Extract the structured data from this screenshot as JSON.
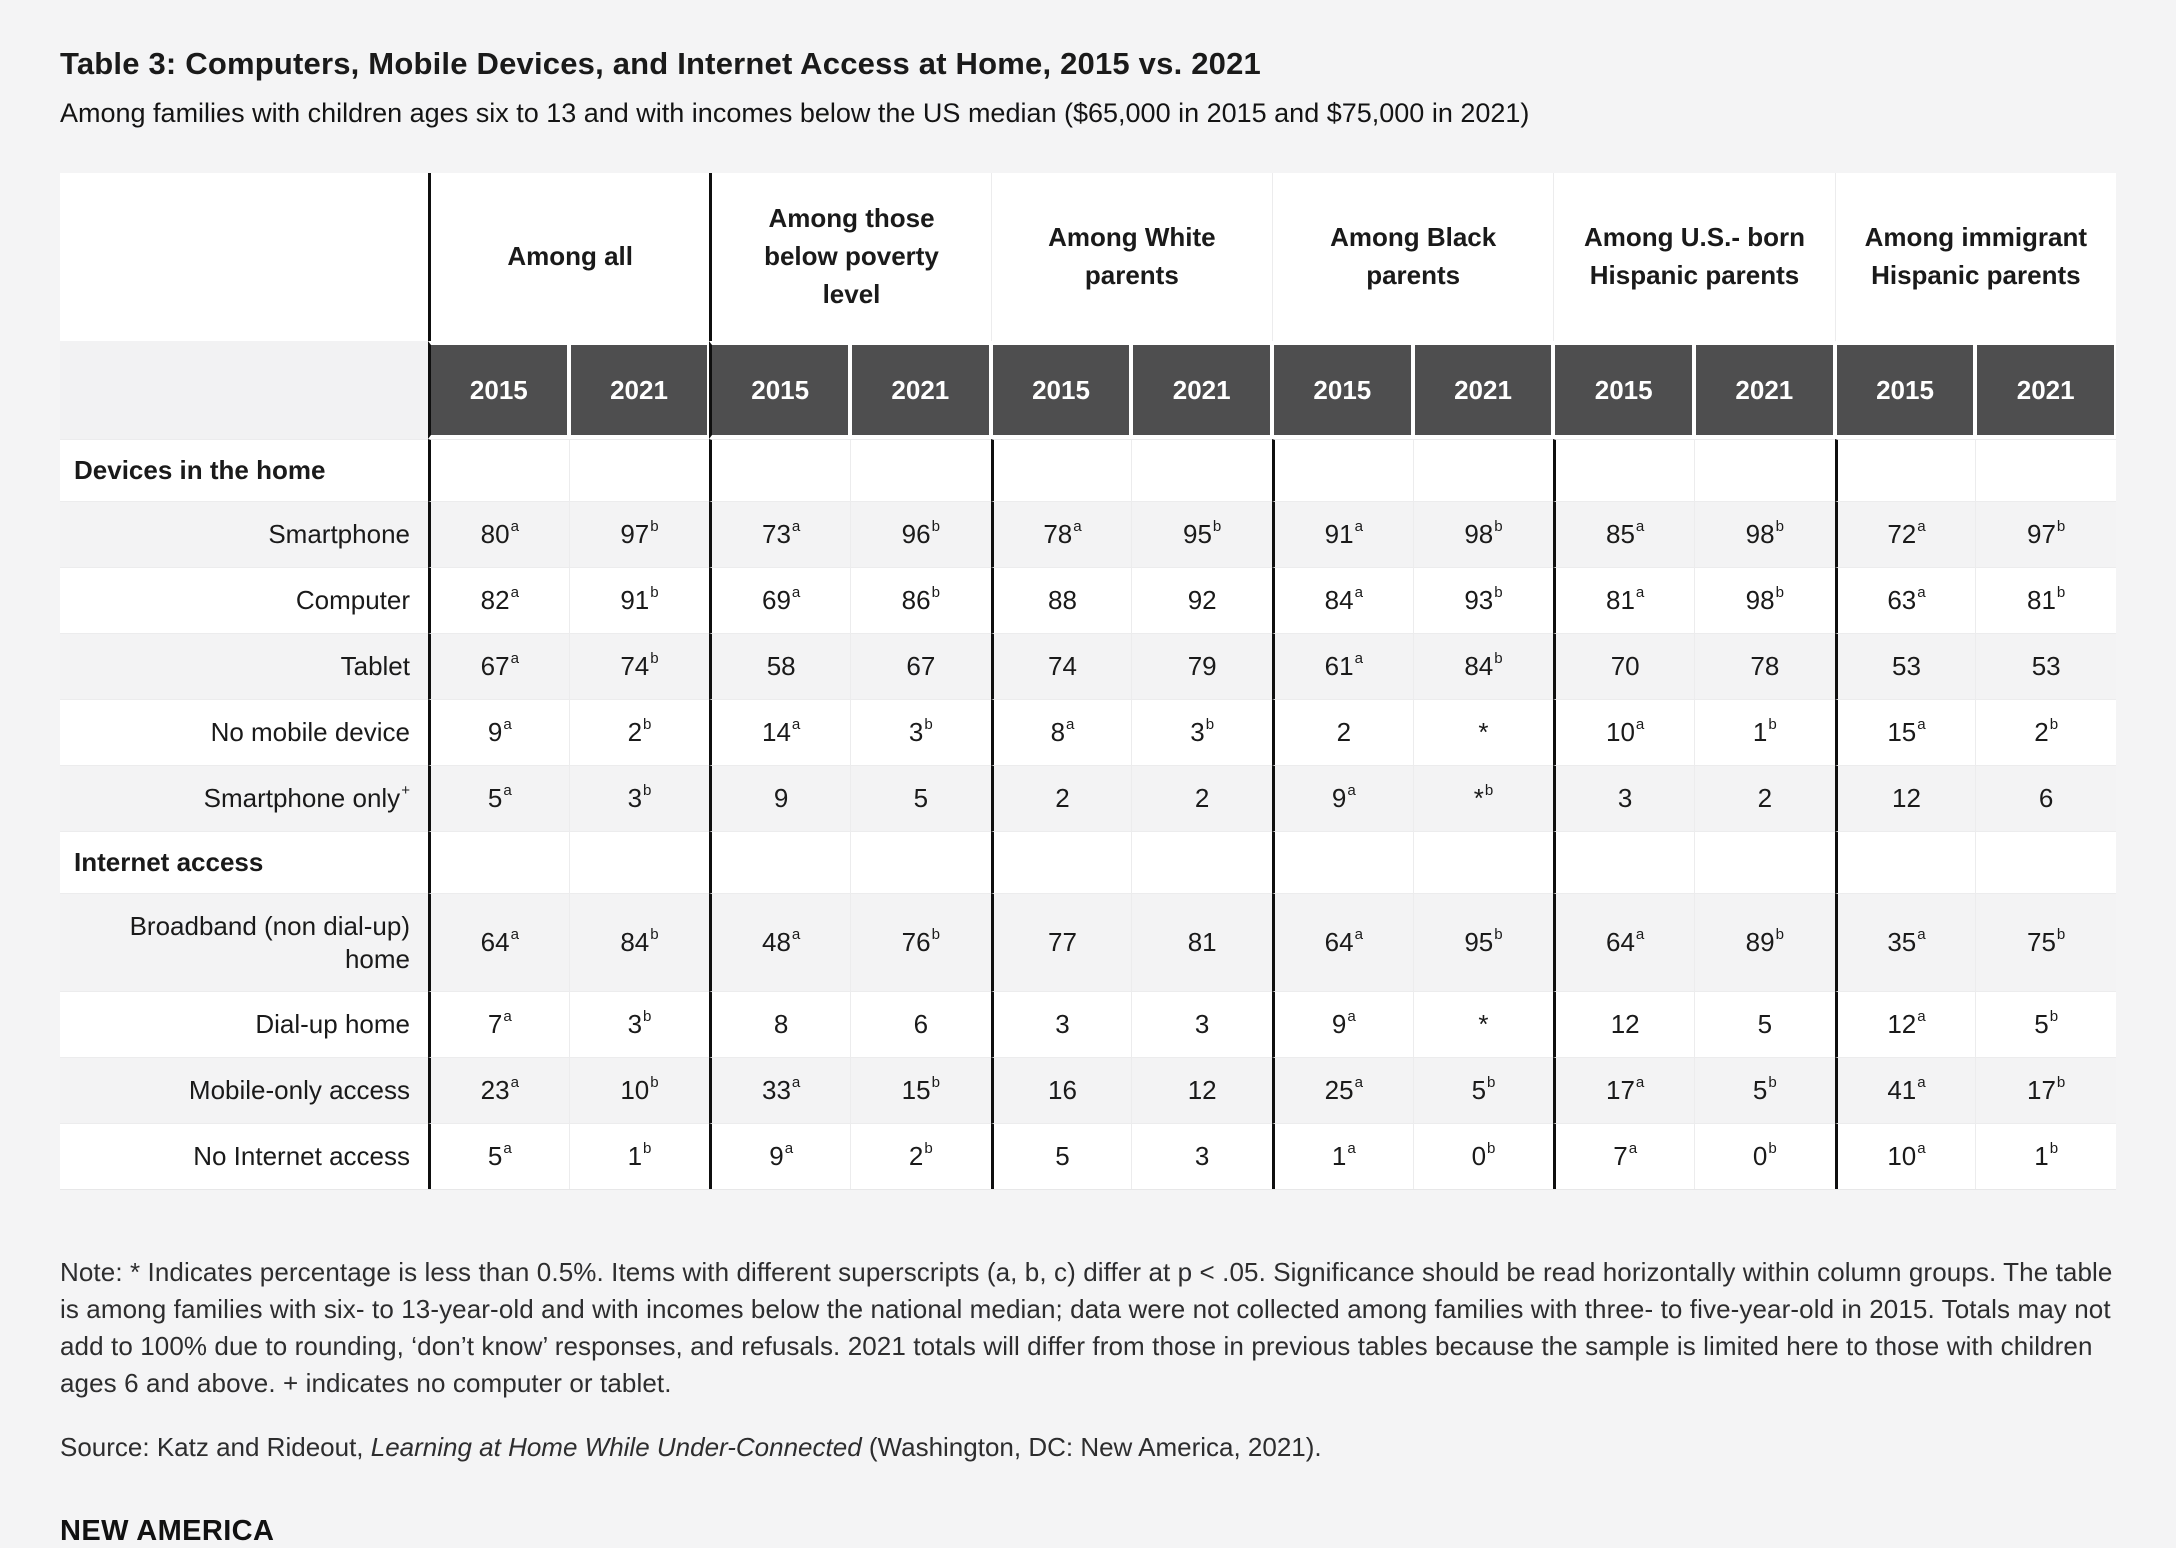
{
  "title": "Table 3: Computers, Mobile Devices, and Internet Access at Home, 2015 vs. 2021",
  "subtitle": "Among families with children ages six to 13 and with incomes below the US median ($65,000 in 2015 and $75,000 in 2021)",
  "colors": {
    "page_background": "#f4f4f5",
    "table_background": "#ffffff",
    "stripe_row": "#f3f3f4",
    "dark_header": "#4e4e4f",
    "dark_header_text": "#ffffff",
    "group_separator": "#0f0f0f",
    "thin_border": "#ececed",
    "text": "#1a1a1a"
  },
  "chart_data": {
    "type": "table",
    "groups": [
      {
        "label": "Among all"
      },
      {
        "label": "Among those below poverty level"
      },
      {
        "label": "Among White parents"
      },
      {
        "label": "Among Black parents"
      },
      {
        "label": "Among U.S.- born Hispanic parents"
      },
      {
        "label": "Among immigrant Hispanic parents"
      }
    ],
    "years": [
      "2015",
      "2021"
    ],
    "rows": [
      {
        "type": "section",
        "label": "Devices in the home"
      },
      {
        "type": "data",
        "label": "Smartphone",
        "label_sup": "",
        "shade": true,
        "tall": false,
        "values": [
          {
            "v": "80",
            "s": "a"
          },
          {
            "v": "97",
            "s": "b"
          },
          {
            "v": "73",
            "s": "a"
          },
          {
            "v": "96",
            "s": "b"
          },
          {
            "v": "78",
            "s": "a"
          },
          {
            "v": "95",
            "s": "b"
          },
          {
            "v": "91",
            "s": "a"
          },
          {
            "v": "98",
            "s": "b"
          },
          {
            "v": "85",
            "s": "a"
          },
          {
            "v": "98",
            "s": "b"
          },
          {
            "v": "72",
            "s": "a"
          },
          {
            "v": "97",
            "s": "b"
          }
        ]
      },
      {
        "type": "data",
        "label": "Computer",
        "label_sup": "",
        "shade": false,
        "tall": false,
        "values": [
          {
            "v": "82",
            "s": "a"
          },
          {
            "v": "91",
            "s": "b"
          },
          {
            "v": "69",
            "s": "a"
          },
          {
            "v": "86",
            "s": "b"
          },
          {
            "v": "88",
            "s": ""
          },
          {
            "v": "92",
            "s": ""
          },
          {
            "v": "84",
            "s": "a"
          },
          {
            "v": "93",
            "s": "b"
          },
          {
            "v": "81",
            "s": "a"
          },
          {
            "v": "98",
            "s": "b"
          },
          {
            "v": "63",
            "s": "a"
          },
          {
            "v": "81",
            "s": "b"
          }
        ]
      },
      {
        "type": "data",
        "label": "Tablet",
        "label_sup": "",
        "shade": true,
        "tall": false,
        "values": [
          {
            "v": "67",
            "s": "a"
          },
          {
            "v": "74",
            "s": "b"
          },
          {
            "v": "58",
            "s": ""
          },
          {
            "v": "67",
            "s": ""
          },
          {
            "v": "74",
            "s": ""
          },
          {
            "v": "79",
            "s": ""
          },
          {
            "v": "61",
            "s": "a"
          },
          {
            "v": "84",
            "s": "b"
          },
          {
            "v": "70",
            "s": ""
          },
          {
            "v": "78",
            "s": ""
          },
          {
            "v": "53",
            "s": ""
          },
          {
            "v": "53",
            "s": ""
          }
        ]
      },
      {
        "type": "data",
        "label": "No mobile device",
        "label_sup": "",
        "shade": false,
        "tall": false,
        "values": [
          {
            "v": "9",
            "s": "a"
          },
          {
            "v": "2",
            "s": "b"
          },
          {
            "v": "14",
            "s": "a"
          },
          {
            "v": "3",
            "s": "b"
          },
          {
            "v": "8",
            "s": "a"
          },
          {
            "v": "3",
            "s": "b"
          },
          {
            "v": "2",
            "s": ""
          },
          {
            "v": "*",
            "s": ""
          },
          {
            "v": "10",
            "s": "a"
          },
          {
            "v": "1",
            "s": "b"
          },
          {
            "v": "15",
            "s": "a"
          },
          {
            "v": "2",
            "s": "b"
          }
        ]
      },
      {
        "type": "data",
        "label": "Smartphone only",
        "label_sup": "+",
        "shade": true,
        "tall": false,
        "values": [
          {
            "v": "5",
            "s": "a"
          },
          {
            "v": "3",
            "s": "b"
          },
          {
            "v": "9",
            "s": ""
          },
          {
            "v": "5",
            "s": ""
          },
          {
            "v": "2",
            "s": ""
          },
          {
            "v": "2",
            "s": ""
          },
          {
            "v": "9",
            "s": "a"
          },
          {
            "v": "*",
            "s": "b"
          },
          {
            "v": "3",
            "s": ""
          },
          {
            "v": "2",
            "s": ""
          },
          {
            "v": "12",
            "s": ""
          },
          {
            "v": "6",
            "s": ""
          }
        ]
      },
      {
        "type": "section",
        "label": "Internet access"
      },
      {
        "type": "data",
        "label": "Broadband (non dial-up) home",
        "label_sup": "",
        "shade": true,
        "tall": true,
        "values": [
          {
            "v": "64",
            "s": "a"
          },
          {
            "v": "84",
            "s": "b"
          },
          {
            "v": "48",
            "s": "a"
          },
          {
            "v": "76",
            "s": "b"
          },
          {
            "v": "77",
            "s": ""
          },
          {
            "v": "81",
            "s": ""
          },
          {
            "v": "64",
            "s": "a"
          },
          {
            "v": "95",
            "s": "b"
          },
          {
            "v": "64",
            "s": "a"
          },
          {
            "v": "89",
            "s": "b"
          },
          {
            "v": "35",
            "s": "a"
          },
          {
            "v": "75",
            "s": "b"
          }
        ]
      },
      {
        "type": "data",
        "label": "Dial-up home",
        "label_sup": "",
        "shade": false,
        "tall": false,
        "values": [
          {
            "v": "7",
            "s": "a"
          },
          {
            "v": "3",
            "s": "b"
          },
          {
            "v": "8",
            "s": ""
          },
          {
            "v": "6",
            "s": ""
          },
          {
            "v": "3",
            "s": ""
          },
          {
            "v": "3",
            "s": ""
          },
          {
            "v": "9",
            "s": "a"
          },
          {
            "v": "*",
            "s": ""
          },
          {
            "v": "12",
            "s": ""
          },
          {
            "v": "5",
            "s": ""
          },
          {
            "v": "12",
            "s": "a"
          },
          {
            "v": "5",
            "s": "b"
          }
        ]
      },
      {
        "type": "data",
        "label": "Mobile-only access",
        "label_sup": "",
        "shade": true,
        "tall": false,
        "values": [
          {
            "v": "23",
            "s": "a"
          },
          {
            "v": "10",
            "s": "b"
          },
          {
            "v": "33",
            "s": "a"
          },
          {
            "v": "15",
            "s": "b"
          },
          {
            "v": "16",
            "s": ""
          },
          {
            "v": "12",
            "s": ""
          },
          {
            "v": "25",
            "s": "a"
          },
          {
            "v": "5",
            "s": "b"
          },
          {
            "v": "17",
            "s": "a"
          },
          {
            "v": "5",
            "s": "b"
          },
          {
            "v": "41",
            "s": "a"
          },
          {
            "v": "17",
            "s": "b"
          }
        ]
      },
      {
        "type": "data",
        "label": "No Internet access",
        "label_sup": "",
        "shade": false,
        "tall": false,
        "values": [
          {
            "v": "5",
            "s": "a"
          },
          {
            "v": "1",
            "s": "b"
          },
          {
            "v": "9",
            "s": "a"
          },
          {
            "v": "2",
            "s": "b"
          },
          {
            "v": "5",
            "s": ""
          },
          {
            "v": "3",
            "s": ""
          },
          {
            "v": "1",
            "s": "a"
          },
          {
            "v": "0",
            "s": "b"
          },
          {
            "v": "7",
            "s": "a"
          },
          {
            "v": "0",
            "s": "b"
          },
          {
            "v": "10",
            "s": "a"
          },
          {
            "v": "1",
            "s": "b"
          }
        ]
      }
    ]
  },
  "note": "Note: * Indicates percentage is less than 0.5%. Items with different superscripts (a, b, c) differ at p < .05. Significance should be read horizontally within column groups. The table is among families with six- to 13-year-old and with incomes below the national median; data were not collected among families with three- to five-year-old in 2015. Totals may not add to 100% due to rounding, ‘don’t know’ responses, and refusals. 2021 totals will differ from those in previous tables because the sample is limited here to those with children ages 6 and above. + indicates no computer or tablet.",
  "source": {
    "prefix": "Source: Katz and Rideout, ",
    "italic": "Learning at Home While Under-Connected",
    "suffix": " (Washington, DC: New America, 2021)."
  },
  "logo": "NEW AMERICA"
}
